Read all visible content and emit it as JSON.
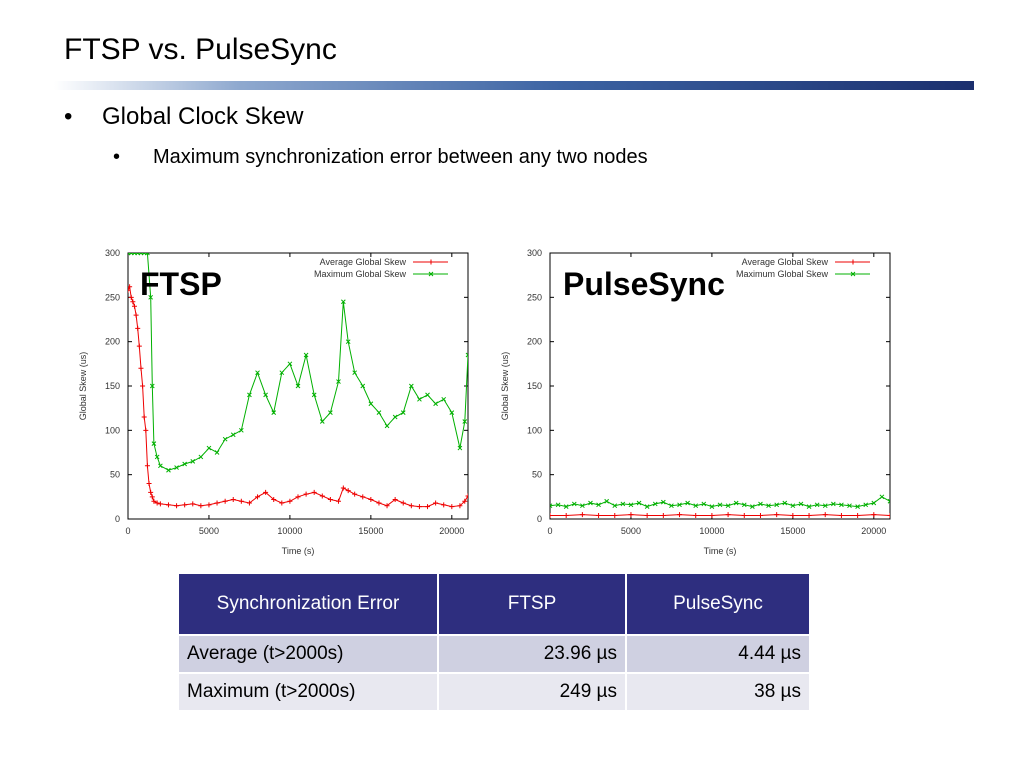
{
  "slide": {
    "title": "FTSP vs. PulseSync",
    "bullets": [
      {
        "marker": "•",
        "text": "Global Clock Skew"
      },
      {
        "marker": "•",
        "text": "Maximum synchronization error between any two nodes"
      }
    ]
  },
  "colors": {
    "avg_series": "#ee0000",
    "max_series": "#00b000",
    "table_header_bg": "#2e2e7f",
    "title_rule": "#1b2f6e"
  },
  "chart_data": [
    {
      "type": "line",
      "overlay_label": "FTSP",
      "xlabel": "Time (s)",
      "ylabel": "Global Skew (us)",
      "xlim": [
        0,
        21000
      ],
      "ylim": [
        0,
        300
      ],
      "xticks": [
        0,
        5000,
        10000,
        15000,
        20000
      ],
      "yticks": [
        0,
        50,
        100,
        150,
        200,
        250,
        300
      ],
      "legend_position": "top-right",
      "series": [
        {
          "name": "Average Global Skew",
          "marker": "+",
          "x": [
            0,
            100,
            200,
            300,
            400,
            500,
            600,
            700,
            800,
            900,
            1000,
            1100,
            1200,
            1300,
            1400,
            1500,
            1600,
            1800,
            2000,
            2500,
            3000,
            3500,
            4000,
            4500,
            5000,
            5500,
            6000,
            6500,
            7000,
            7500,
            8000,
            8500,
            9000,
            9500,
            10000,
            10500,
            11000,
            11500,
            12000,
            12500,
            13000,
            13300,
            13600,
            14000,
            14500,
            15000,
            15500,
            16000,
            16500,
            17000,
            17500,
            18000,
            18500,
            19000,
            19500,
            20000,
            20500,
            20800,
            21000
          ],
          "values": [
            258,
            262,
            250,
            245,
            240,
            230,
            215,
            195,
            170,
            150,
            115,
            100,
            60,
            40,
            30,
            25,
            20,
            18,
            17,
            16,
            15,
            16,
            17,
            15,
            16,
            18,
            20,
            22,
            20,
            18,
            25,
            30,
            22,
            18,
            20,
            25,
            28,
            30,
            26,
            22,
            20,
            35,
            32,
            28,
            25,
            22,
            18,
            15,
            22,
            18,
            15,
            14,
            14,
            18,
            16,
            14,
            15,
            20,
            26
          ]
        },
        {
          "name": "Maximum Global Skew",
          "marker": "x",
          "x": [
            0,
            200,
            400,
            600,
            800,
            1000,
            1200,
            1400,
            1500,
            1600,
            1800,
            2000,
            2500,
            3000,
            3500,
            4000,
            4500,
            5000,
            5500,
            6000,
            6500,
            7000,
            7500,
            8000,
            8500,
            9000,
            9500,
            10000,
            10500,
            11000,
            11500,
            12000,
            12500,
            13000,
            13300,
            13600,
            14000,
            14500,
            15000,
            15500,
            16000,
            16500,
            17000,
            17500,
            18000,
            18500,
            19000,
            19500,
            20000,
            20500,
            20800,
            21000
          ],
          "values": [
            300,
            300,
            300,
            300,
            300,
            300,
            300,
            250,
            150,
            85,
            70,
            60,
            55,
            58,
            62,
            65,
            70,
            80,
            75,
            90,
            95,
            100,
            140,
            165,
            140,
            120,
            165,
            175,
            150,
            185,
            140,
            110,
            120,
            155,
            245,
            200,
            165,
            150,
            130,
            120,
            105,
            115,
            120,
            150,
            135,
            140,
            130,
            135,
            120,
            80,
            110,
            185
          ]
        }
      ]
    },
    {
      "type": "line",
      "overlay_label": "PulseSync",
      "xlabel": "Time (s)",
      "ylabel": "Global Skew (us)",
      "xlim": [
        0,
        21000
      ],
      "ylim": [
        0,
        300
      ],
      "xticks": [
        0,
        5000,
        10000,
        15000,
        20000
      ],
      "yticks": [
        0,
        50,
        100,
        150,
        200,
        250,
        300
      ],
      "legend_position": "top-right",
      "series": [
        {
          "name": "Average Global Skew",
          "marker": "+",
          "x": [
            0,
            1000,
            2000,
            3000,
            4000,
            5000,
            6000,
            7000,
            8000,
            9000,
            10000,
            11000,
            12000,
            13000,
            14000,
            15000,
            16000,
            17000,
            18000,
            19000,
            20000,
            21000
          ],
          "values": [
            4,
            4,
            5,
            4,
            4,
            5,
            4,
            4,
            5,
            4,
            4,
            5,
            4,
            4,
            5,
            4,
            4,
            5,
            4,
            4,
            5,
            4
          ]
        },
        {
          "name": "Maximum Global Skew",
          "marker": "x",
          "x": [
            0,
            500,
            1000,
            1500,
            2000,
            2500,
            3000,
            3500,
            4000,
            4500,
            5000,
            5500,
            6000,
            6500,
            7000,
            7500,
            8000,
            8500,
            9000,
            9500,
            10000,
            10500,
            11000,
            11500,
            12000,
            12500,
            13000,
            13500,
            14000,
            14500,
            15000,
            15500,
            16000,
            16500,
            17000,
            17500,
            18000,
            18500,
            19000,
            19500,
            20000,
            20500,
            21000
          ],
          "values": [
            15,
            16,
            14,
            17,
            15,
            18,
            16,
            20,
            15,
            17,
            16,
            18,
            14,
            17,
            19,
            15,
            16,
            18,
            15,
            17,
            14,
            16,
            15,
            18,
            16,
            14,
            17,
            15,
            16,
            18,
            15,
            17,
            14,
            16,
            15,
            17,
            16,
            15,
            14,
            16,
            18,
            25,
            20
          ]
        }
      ]
    }
  ],
  "table": {
    "headers": [
      "Synchronization Error",
      "FTSP",
      "PulseSync"
    ],
    "rows": [
      [
        "Average (t>2000s)",
        "23.96 µs",
        "4.44 µs"
      ],
      [
        "Maximum (t>2000s)",
        "249 µs",
        "38 µs"
      ]
    ]
  }
}
